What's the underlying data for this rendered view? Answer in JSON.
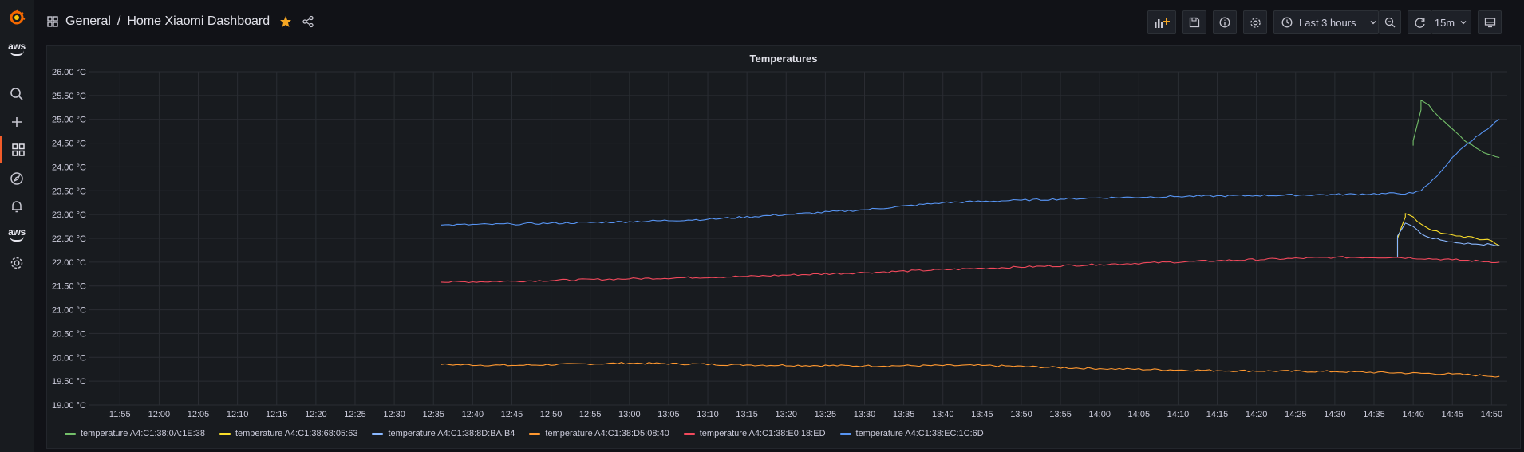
{
  "nav": {
    "items": [
      {
        "name": "grafana-logo-icon"
      },
      {
        "name": "aws-logo-icon",
        "label": "aws"
      },
      {
        "name": "search-icon"
      },
      {
        "name": "plus-icon"
      },
      {
        "name": "dashboards-icon"
      },
      {
        "name": "explore-compass-icon"
      },
      {
        "name": "alerting-bell-icon"
      },
      {
        "name": "aws-logo-icon",
        "label": "aws"
      },
      {
        "name": "gear-icon"
      }
    ]
  },
  "header": {
    "folder": "General",
    "separator": "/",
    "title": "Home Xiaomi Dashboard",
    "time_range": "Last 3 hours",
    "refresh": "15m",
    "icons": [
      "add-panel-icon",
      "save-icon",
      "info-icon",
      "settings-icon",
      "clock-icon",
      "zoom-out-icon",
      "refresh-icon",
      "tv-mode-icon"
    ]
  },
  "panel": {
    "title": "Temperatures"
  },
  "chart_data": {
    "type": "line",
    "title": "Temperatures",
    "ylim": [
      19.0,
      26.0
    ],
    "yticks": [
      "19.00 °C",
      "19.50 °C",
      "20.00 °C",
      "20.50 °C",
      "21.00 °C",
      "21.50 °C",
      "22.00 °C",
      "22.50 °C",
      "23.00 °C",
      "23.50 °C",
      "24.00 °C",
      "24.50 °C",
      "25.00 °C",
      "25.50 °C",
      "26.00 °C"
    ],
    "xticks": [
      "11:55",
      "12:00",
      "12:05",
      "12:10",
      "12:15",
      "12:20",
      "12:25",
      "12:30",
      "12:35",
      "12:40",
      "12:45",
      "12:50",
      "12:55",
      "13:00",
      "13:05",
      "13:10",
      "13:15",
      "13:20",
      "13:25",
      "13:30",
      "13:35",
      "13:40",
      "13:45",
      "13:50",
      "13:55",
      "14:00",
      "14:05",
      "14:10",
      "14:15",
      "14:20",
      "14:25",
      "14:30",
      "14:35",
      "14:40",
      "14:45",
      "14:50"
    ],
    "xrange": [
      "11:51",
      "14:52"
    ],
    "grid": true,
    "legend_position": "bottom",
    "series": [
      {
        "name": "temperature A4:C1:38:0A:1E:38",
        "color": "#73bf69",
        "points": [
          [
            "14:40",
            24.45
          ],
          [
            "14:40",
            24.55
          ],
          [
            "14:41",
            25.2
          ],
          [
            "14:41",
            25.4
          ],
          [
            "14:42",
            25.3
          ],
          [
            "14:43",
            25.1
          ],
          [
            "14:44",
            24.95
          ],
          [
            "14:45",
            24.8
          ],
          [
            "14:46",
            24.65
          ],
          [
            "14:47",
            24.5
          ],
          [
            "14:48",
            24.4
          ],
          [
            "14:49",
            24.3
          ],
          [
            "14:50",
            24.25
          ],
          [
            "14:51",
            24.2
          ]
        ]
      },
      {
        "name": "temperature A4:C1:38:68:05:63",
        "color": "#fade2a",
        "points": [
          [
            "14:38",
            22.1
          ],
          [
            "14:38",
            22.5
          ],
          [
            "14:39",
            22.95
          ],
          [
            "14:39",
            23.02
          ],
          [
            "14:40",
            22.95
          ],
          [
            "14:41",
            22.8
          ],
          [
            "14:42",
            22.7
          ],
          [
            "14:44",
            22.6
          ],
          [
            "14:46",
            22.55
          ],
          [
            "14:48",
            22.5
          ],
          [
            "14:50",
            22.45
          ],
          [
            "14:51",
            22.35
          ]
        ]
      },
      {
        "name": "temperature A4:C1:38:8D:BA:B4",
        "color": "#8ab8ff",
        "points": [
          [
            "14:38",
            22.1
          ],
          [
            "14:38",
            22.55
          ],
          [
            "14:39",
            22.82
          ],
          [
            "14:40",
            22.75
          ],
          [
            "14:41",
            22.6
          ],
          [
            "14:42",
            22.52
          ],
          [
            "14:44",
            22.45
          ],
          [
            "14:46",
            22.4
          ],
          [
            "14:48",
            22.38
          ],
          [
            "14:50",
            22.37
          ],
          [
            "14:51",
            22.35
          ]
        ]
      },
      {
        "name": "temperature A4:C1:38:D5:08:40",
        "color": "#ff9830",
        "points": [
          [
            "12:36",
            19.85
          ],
          [
            "12:45",
            19.83
          ],
          [
            "13:00",
            19.88
          ],
          [
            "13:15",
            19.84
          ],
          [
            "13:30",
            19.82
          ],
          [
            "13:45",
            19.83
          ],
          [
            "14:00",
            19.76
          ],
          [
            "14:15",
            19.72
          ],
          [
            "14:30",
            19.7
          ],
          [
            "14:45",
            19.65
          ],
          [
            "14:51",
            19.6
          ]
        ]
      },
      {
        "name": "temperature A4:C1:38:E0:18:ED",
        "color": "#f2495c",
        "points": [
          [
            "12:36",
            21.58
          ],
          [
            "12:45",
            21.6
          ],
          [
            "13:00",
            21.65
          ],
          [
            "13:15",
            21.7
          ],
          [
            "13:30",
            21.78
          ],
          [
            "13:45",
            21.87
          ],
          [
            "14:00",
            21.95
          ],
          [
            "14:15",
            22.03
          ],
          [
            "14:30",
            22.1
          ],
          [
            "14:38",
            22.1
          ],
          [
            "14:45",
            22.05
          ],
          [
            "14:51",
            22.0
          ]
        ]
      },
      {
        "name": "temperature A4:C1:38:EC:1C:6D",
        "color": "#5794f2",
        "points": [
          [
            "12:36",
            22.78
          ],
          [
            "12:45",
            22.8
          ],
          [
            "13:00",
            22.85
          ],
          [
            "13:10",
            22.9
          ],
          [
            "13:20",
            23.0
          ],
          [
            "13:30",
            23.1
          ],
          [
            "13:40",
            23.25
          ],
          [
            "13:50",
            23.3
          ],
          [
            "14:00",
            23.35
          ],
          [
            "14:10",
            23.38
          ],
          [
            "14:20",
            23.4
          ],
          [
            "14:30",
            23.42
          ],
          [
            "14:40",
            23.45
          ],
          [
            "14:41",
            23.5
          ],
          [
            "14:43",
            23.8
          ],
          [
            "14:45",
            24.2
          ],
          [
            "14:47",
            24.5
          ],
          [
            "14:49",
            24.75
          ],
          [
            "14:51",
            25.0
          ]
        ]
      }
    ]
  }
}
